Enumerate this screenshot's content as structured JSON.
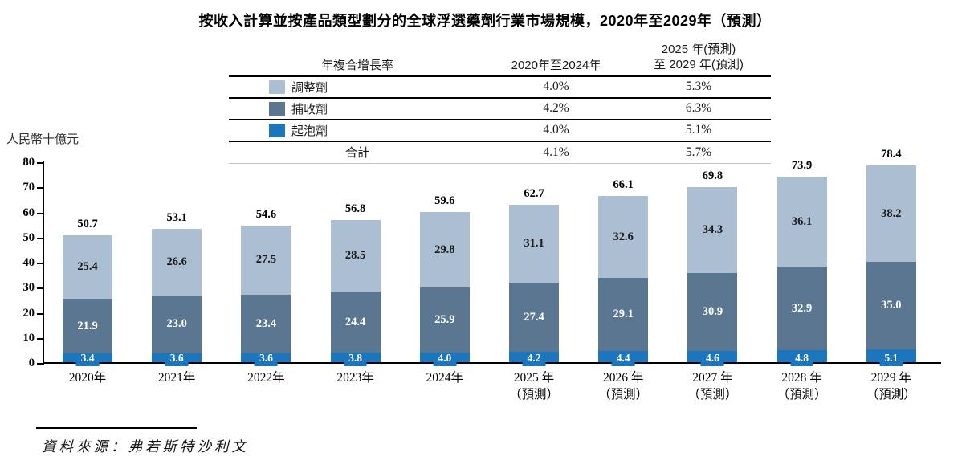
{
  "title": "按收入計算並按產品類型劃分的全球浮選藥劑行業市場規模，2020年至2029年（預測）",
  "cagr_table": {
    "header": {
      "metric": "年複合增長率",
      "period1": "2020年至2024年",
      "period2": "2025 年(預測)\n至 2029 年(預測)"
    },
    "rows": [
      {
        "label": "調整劑",
        "swatch": "#abbed2",
        "period1": "4.0%",
        "period2": "5.3%"
      },
      {
        "label": "捕收劑",
        "swatch": "#5b7691",
        "period1": "4.2%",
        "period2": "6.3%"
      },
      {
        "label": "起泡劑",
        "swatch": "#1b76bd",
        "period1": "4.0%",
        "period2": "5.1%"
      },
      {
        "label": "合計",
        "swatch": null,
        "period1": "4.1%",
        "period2": "5.7%"
      }
    ]
  },
  "chart_data": {
    "type": "bar",
    "stacked": true,
    "title": "按收入計算並按產品類型劃分的全球浮選藥劑行業市場規模，2020年至2029年（預測）",
    "ylabel": "人民幣十億元",
    "xlabel": "",
    "ylim": [
      0,
      80
    ],
    "yticks": [
      0,
      10,
      20,
      30,
      40,
      50,
      60,
      70,
      80
    ],
    "grid": false,
    "legend_position": "top-table",
    "categories": [
      "2020年",
      "2021年",
      "2022年",
      "2023年",
      "2024年",
      "2025 年\n（預測）",
      "2026 年\n（預測）",
      "2027 年\n（預測）",
      "2028 年\n（預測）",
      "2029 年\n（預測）"
    ],
    "series": [
      {
        "name": "調整劑",
        "color": "#abbed2",
        "text_color": "#1a1a1a",
        "values": [
          "25.4",
          "26.6",
          "27.5",
          "28.5",
          "29.8",
          "31.1",
          "32.6",
          "34.3",
          "36.1",
          "38.2"
        ]
      },
      {
        "name": "捕收劑",
        "color": "#5b7691",
        "text_color": "#ffffff",
        "values": [
          "21.9",
          "23.0",
          "23.4",
          "24.4",
          "25.9",
          "27.4",
          "29.1",
          "30.9",
          "32.9",
          "35.0"
        ]
      },
      {
        "name": "起泡劑",
        "color": "#1b76bd",
        "text_color": "#ffffff",
        "values": [
          "3.4",
          "3.6",
          "3.6",
          "3.8",
          "4.0",
          "4.2",
          "4.4",
          "4.6",
          "4.8",
          "5.1"
        ]
      }
    ],
    "totals": [
      "50.7",
      "53.1",
      "54.6",
      "56.8",
      "59.6",
      "62.7",
      "66.1",
      "69.8",
      "73.9",
      "78.4"
    ]
  },
  "source": {
    "text": "資料來源：弗若斯特沙利文"
  }
}
